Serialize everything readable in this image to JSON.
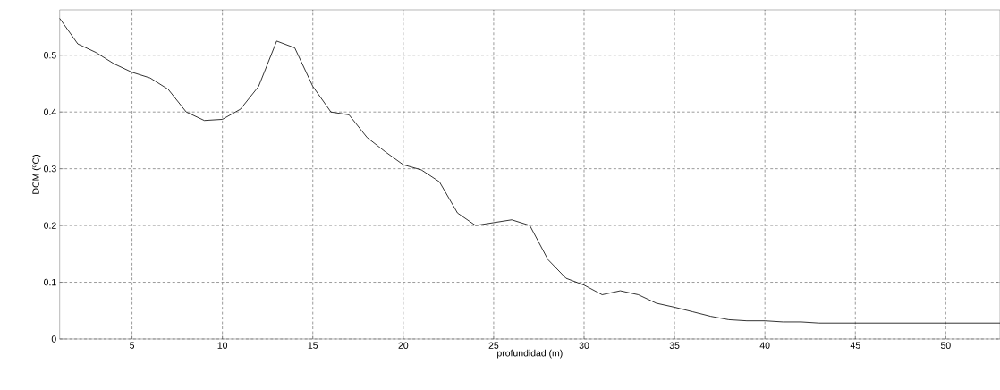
{
  "chart_data": {
    "type": "line",
    "xlabel": "profundidad    (m)",
    "ylabel": "DCM  (ºC)",
    "x": [
      1,
      2,
      3,
      4,
      5,
      6,
      7,
      8,
      9,
      10,
      11,
      12,
      13,
      14,
      15,
      16,
      17,
      18,
      19,
      20,
      21,
      22,
      23,
      24,
      25,
      26,
      27,
      28,
      29,
      30,
      31,
      32,
      33,
      34,
      35,
      36,
      37,
      38,
      39,
      40,
      41,
      42,
      43,
      44,
      45,
      46,
      47,
      48,
      49,
      50,
      51,
      52,
      53
    ],
    "series": [
      {
        "color": "#000000",
        "values": [
          0.565,
          0.52,
          0.505,
          0.485,
          0.47,
          0.46,
          0.44,
          0.4,
          0.385,
          0.387,
          0.405,
          0.445,
          0.525,
          0.513,
          0.445,
          0.4,
          0.395,
          0.355,
          0.33,
          0.307,
          0.298,
          0.277,
          0.222,
          0.2,
          0.205,
          0.21,
          0.2,
          0.14,
          0.107,
          0.095,
          0.078,
          0.085,
          0.078,
          0.063,
          0.056,
          0.048,
          0.04,
          0.034,
          0.032,
          0.032,
          0.03,
          0.03,
          0.028,
          0.028,
          0.028,
          0.028,
          0.028,
          0.028,
          0.028,
          0.028,
          0.028,
          0.028,
          0.028
        ]
      }
    ],
    "xlim": [
      1,
      53
    ],
    "ylim": [
      0,
      0.58
    ],
    "xticks": [
      5,
      10,
      15,
      20,
      25,
      30,
      35,
      40,
      45,
      50
    ],
    "yticks": [
      0,
      0.1,
      0.2,
      0.3,
      0.4,
      0.5
    ],
    "grid": true,
    "marker": "none",
    "line_style": "solid"
  }
}
